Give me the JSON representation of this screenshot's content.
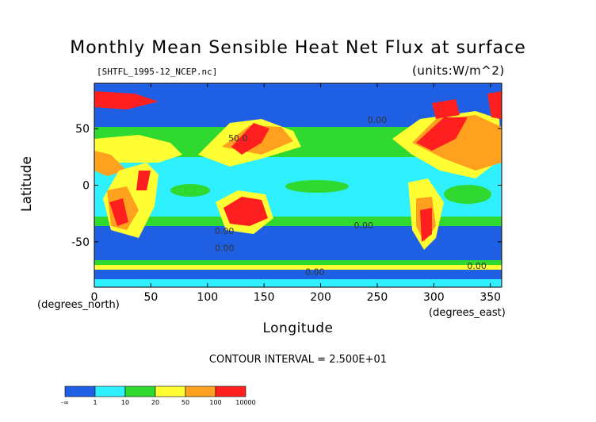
{
  "chart_data": {
    "type": "heatmap",
    "title": "Monthly Mean Sensible Heat Net Flux at surface",
    "file_label": "[SHTFL_1995-12_NCEP.nc]",
    "units_label": "(units:W/m^2)",
    "xlabel": "Longitude",
    "ylabel": "Latitude",
    "x_unit": "(degrees_east)",
    "y_unit": "(degrees_north)",
    "xlim": [
      0,
      360
    ],
    "ylim": [
      -90,
      90
    ],
    "x_ticks": [
      0,
      50,
      100,
      150,
      200,
      250,
      300,
      350
    ],
    "y_ticks": [
      -50,
      0,
      50
    ],
    "contour_interval_label": "CONTOUR INTERVAL = 2.500E+01",
    "contour_labels": [
      {
        "text": "50.0",
        "lon": 127,
        "lat": 39
      },
      {
        "text": "0.00",
        "lon": 250,
        "lat": 55
      },
      {
        "text": "0.00",
        "lon": 115,
        "lat": -43
      },
      {
        "text": "0.00",
        "lon": 115,
        "lat": -58
      },
      {
        "text": "0.00",
        "lon": 238,
        "lat": -38
      },
      {
        "text": "0.00",
        "lon": 195,
        "lat": -79
      },
      {
        "text": "0.00",
        "lon": 338,
        "lat": -74
      }
    ],
    "colorbar": {
      "colors": [
        "#1f5fe3",
        "#2ff0ff",
        "#2fd92f",
        "#ffff33",
        "#ffa11f",
        "#ff1f1f"
      ],
      "labels": [
        "-∞",
        "1",
        "10",
        "20",
        "50",
        "100",
        "10000"
      ]
    },
    "palette": {
      "very_negative": "#1f5fe3",
      "low": "#2ff0ff",
      "mid": "#2fd92f",
      "moderate": "#ffff33",
      "high": "#ffa11f",
      "very_high": "#ff1f1f"
    }
  }
}
